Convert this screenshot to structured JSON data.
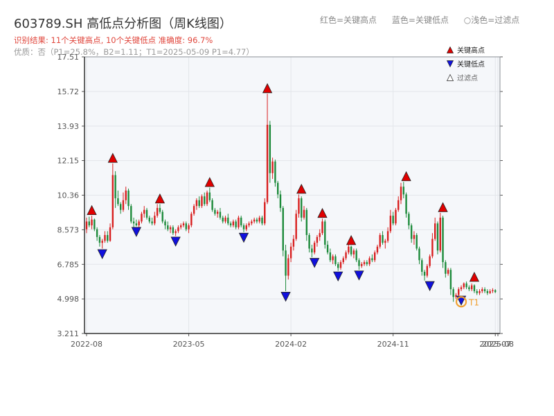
{
  "header": {
    "title": "603789.SH 高低点分析图（周K线图）",
    "subtitle": "识别结果: 11个关键高点, 10个关键低点   准确度: 96.7%",
    "note": "优质：否（P1=25.8%，B2=1.11；T1=2025-05-09 P1=4.77）",
    "legend_top": [
      "红色=关键高点",
      "蓝色=关键低点",
      "○浅色=过滤点"
    ]
  },
  "chart_data": {
    "type": "candlestick",
    "y_ticks": [
      "3.211",
      "4.998",
      "6.785",
      "8.573",
      "10.36",
      "12.15",
      "13.93",
      "15.72",
      "17.51"
    ],
    "ylim": [
      3.211,
      17.51
    ],
    "x_ticks": [
      {
        "i": 0,
        "label": "2022-08"
      },
      {
        "i": 39,
        "label": "2023-05"
      },
      {
        "i": 78,
        "label": "2024-02"
      },
      {
        "i": 117,
        "label": "2024-11"
      },
      {
        "i": 156,
        "label": "2025-07"
      },
      {
        "i": 157,
        "label": "2025-08"
      }
    ],
    "x_range": [
      0,
      157
    ],
    "legend": {
      "position": "top-right",
      "items": [
        {
          "label": "关键高点",
          "color": "#e00000",
          "marker": "up"
        },
        {
          "label": "关键低点",
          "color": "#1010dd",
          "marker": "down"
        },
        {
          "label": "过滤点",
          "color": "#ffffff",
          "marker": "up-hollow"
        }
      ]
    },
    "key_highs": [
      {
        "i": 2,
        "price": 9.3
      },
      {
        "i": 10,
        "price": 12.0
      },
      {
        "i": 28,
        "price": 9.9
      },
      {
        "i": 47,
        "price": 10.75
      },
      {
        "i": 69,
        "price": 15.6
      },
      {
        "i": 82,
        "price": 10.4
      },
      {
        "i": 90,
        "price": 9.15
      },
      {
        "i": 101,
        "price": 7.75
      },
      {
        "i": 122,
        "price": 11.05
      },
      {
        "i": 136,
        "price": 9.45
      },
      {
        "i": 148,
        "price": 5.85
      }
    ],
    "key_lows": [
      {
        "i": 6,
        "price": 7.6
      },
      {
        "i": 19,
        "price": 8.75
      },
      {
        "i": 34,
        "price": 8.25
      },
      {
        "i": 60,
        "price": 8.45
      },
      {
        "i": 76,
        "price": 5.4
      },
      {
        "i": 87,
        "price": 7.15
      },
      {
        "i": 96,
        "price": 6.45
      },
      {
        "i": 104,
        "price": 6.5
      },
      {
        "i": 131,
        "price": 5.95
      },
      {
        "i": 143,
        "price": 5.2
      }
    ],
    "filtered_points": [
      {
        "i": 143,
        "price": 4.85,
        "label": "T1"
      }
    ],
    "candles": [
      [
        8.6,
        9.2,
        8.4,
        9.0
      ],
      [
        9.0,
        9.25,
        8.7,
        8.8
      ],
      [
        8.8,
        9.3,
        8.6,
        9.1
      ],
      [
        9.1,
        9.15,
        8.5,
        8.6
      ],
      [
        8.6,
        8.7,
        8.0,
        8.2
      ],
      [
        8.2,
        8.3,
        7.7,
        7.9
      ],
      [
        7.9,
        8.1,
        7.6,
        8.0
      ],
      [
        8.0,
        8.5,
        7.9,
        8.3
      ],
      [
        8.3,
        8.5,
        7.9,
        8.0
      ],
      [
        8.0,
        8.9,
        7.95,
        8.7
      ],
      [
        8.7,
        12.0,
        8.6,
        11.4
      ],
      [
        11.4,
        11.6,
        9.7,
        10.2
      ],
      [
        10.2,
        10.6,
        9.8,
        9.9
      ],
      [
        9.9,
        10.0,
        9.4,
        9.6
      ],
      [
        9.6,
        10.5,
        9.5,
        10.1
      ],
      [
        10.1,
        10.8,
        9.9,
        10.6
      ],
      [
        10.6,
        10.7,
        9.6,
        9.8
      ],
      [
        9.8,
        9.9,
        8.9,
        9.0
      ],
      [
        9.0,
        9.2,
        8.7,
        8.9
      ],
      [
        8.9,
        9.1,
        8.75,
        8.8
      ],
      [
        8.8,
        9.1,
        8.7,
        9.0
      ],
      [
        9.0,
        9.5,
        8.9,
        9.4
      ],
      [
        9.4,
        9.8,
        9.2,
        9.6
      ],
      [
        9.6,
        9.7,
        9.1,
        9.2
      ],
      [
        9.2,
        9.3,
        8.9,
        9.0
      ],
      [
        9.0,
        9.2,
        8.8,
        8.9
      ],
      [
        8.9,
        9.5,
        8.8,
        9.3
      ],
      [
        9.3,
        9.9,
        9.2,
        9.7
      ],
      [
        9.7,
        9.9,
        9.4,
        9.5
      ],
      [
        9.5,
        9.6,
        8.9,
        9.0
      ],
      [
        9.0,
        9.1,
        8.6,
        8.8
      ],
      [
        8.8,
        9.0,
        8.5,
        8.6
      ],
      [
        8.6,
        8.8,
        8.4,
        8.7
      ],
      [
        8.7,
        8.8,
        8.3,
        8.4
      ],
      [
        8.4,
        8.6,
        8.25,
        8.5
      ],
      [
        8.5,
        8.8,
        8.4,
        8.7
      ],
      [
        8.7,
        8.9,
        8.6,
        8.8
      ],
      [
        8.8,
        9.0,
        8.7,
        8.9
      ],
      [
        8.9,
        9.0,
        8.5,
        8.6
      ],
      [
        8.6,
        8.9,
        8.4,
        8.8
      ],
      [
        8.8,
        9.5,
        8.7,
        9.4
      ],
      [
        9.4,
        9.9,
        9.3,
        9.8
      ],
      [
        9.8,
        10.2,
        9.6,
        10.1
      ],
      [
        10.1,
        10.3,
        9.7,
        9.8
      ],
      [
        9.8,
        10.4,
        9.7,
        10.3
      ],
      [
        10.3,
        10.5,
        9.8,
        9.9
      ],
      [
        9.9,
        10.6,
        9.8,
        10.5
      ],
      [
        10.5,
        10.75,
        10.0,
        10.1
      ],
      [
        10.1,
        10.2,
        9.5,
        9.6
      ],
      [
        9.6,
        9.7,
        9.3,
        9.4
      ],
      [
        9.4,
        9.6,
        9.2,
        9.5
      ],
      [
        9.5,
        9.7,
        9.1,
        9.2
      ],
      [
        9.2,
        9.3,
        8.9,
        9.0
      ],
      [
        9.0,
        9.3,
        8.9,
        9.2
      ],
      [
        9.2,
        9.4,
        8.8,
        8.9
      ],
      [
        8.9,
        9.0,
        8.7,
        8.8
      ],
      [
        8.8,
        9.1,
        8.7,
        9.0
      ],
      [
        9.0,
        9.1,
        8.6,
        8.7
      ],
      [
        8.7,
        9.3,
        8.6,
        9.2
      ],
      [
        9.2,
        9.3,
        8.7,
        8.8
      ],
      [
        8.8,
        8.9,
        8.45,
        8.6
      ],
      [
        8.6,
        8.9,
        8.5,
        8.8
      ],
      [
        8.8,
        9.0,
        8.7,
        8.9
      ],
      [
        8.9,
        9.1,
        8.8,
        9.0
      ],
      [
        9.0,
        9.2,
        8.9,
        9.1
      ],
      [
        9.1,
        9.2,
        8.9,
        9.0
      ],
      [
        9.0,
        9.3,
        8.9,
        9.2
      ],
      [
        9.2,
        9.3,
        8.8,
        8.9
      ],
      [
        8.9,
        10.2,
        8.8,
        10.0
      ],
      [
        10.0,
        15.6,
        9.9,
        14.0
      ],
      [
        14.0,
        14.2,
        11.0,
        11.5
      ],
      [
        11.5,
        12.3,
        11.2,
        12.1
      ],
      [
        12.1,
        12.2,
        10.8,
        11.0
      ],
      [
        11.0,
        11.1,
        10.2,
        10.4
      ],
      [
        10.4,
        10.6,
        9.5,
        9.7
      ],
      [
        9.7,
        9.8,
        7.2,
        7.5
      ],
      [
        7.5,
        7.8,
        5.4,
        6.2
      ],
      [
        6.2,
        7.3,
        6.0,
        7.1
      ],
      [
        7.1,
        7.9,
        6.9,
        7.7
      ],
      [
        7.7,
        8.3,
        7.5,
        8.1
      ],
      [
        8.1,
        9.6,
        8.0,
        9.4
      ],
      [
        9.4,
        10.4,
        9.2,
        10.2
      ],
      [
        10.2,
        10.3,
        9.0,
        9.2
      ],
      [
        9.2,
        9.8,
        9.1,
        9.6
      ],
      [
        9.6,
        9.7,
        8.0,
        8.3
      ],
      [
        8.3,
        8.4,
        7.4,
        7.6
      ],
      [
        7.6,
        7.8,
        7.15,
        7.4
      ],
      [
        7.4,
        8.0,
        7.3,
        7.9
      ],
      [
        7.9,
        8.3,
        7.7,
        8.2
      ],
      [
        8.2,
        8.6,
        8.0,
        8.4
      ],
      [
        8.4,
        9.15,
        8.3,
        9.0
      ],
      [
        9.0,
        9.1,
        7.6,
        7.8
      ],
      [
        7.8,
        8.0,
        7.3,
        7.4
      ],
      [
        7.4,
        7.6,
        6.9,
        7.0
      ],
      [
        7.0,
        7.3,
        6.8,
        7.2
      ],
      [
        7.2,
        7.3,
        6.7,
        6.8
      ],
      [
        6.8,
        6.9,
        6.45,
        6.6
      ],
      [
        6.6,
        7.0,
        6.5,
        6.9
      ],
      [
        6.9,
        7.2,
        6.8,
        7.1
      ],
      [
        7.1,
        7.5,
        7.0,
        7.4
      ],
      [
        7.4,
        7.8,
        7.3,
        7.7
      ],
      [
        7.7,
        7.75,
        7.2,
        7.3
      ],
      [
        7.3,
        7.6,
        7.1,
        7.5
      ],
      [
        7.5,
        7.6,
        6.9,
        7.0
      ],
      [
        7.0,
        7.1,
        6.5,
        6.7
      ],
      [
        6.7,
        6.9,
        6.6,
        6.8
      ],
      [
        6.8,
        7.0,
        6.7,
        6.9
      ],
      [
        6.9,
        7.0,
        6.7,
        6.8
      ],
      [
        6.8,
        7.2,
        6.7,
        7.1
      ],
      [
        7.1,
        7.3,
        6.9,
        7.0
      ],
      [
        7.0,
        7.5,
        6.9,
        7.4
      ],
      [
        7.4,
        7.8,
        7.3,
        7.7
      ],
      [
        7.7,
        8.4,
        7.6,
        8.3
      ],
      [
        8.3,
        8.5,
        7.8,
        7.9
      ],
      [
        7.9,
        8.1,
        7.6,
        8.0
      ],
      [
        8.0,
        8.7,
        7.9,
        8.5
      ],
      [
        8.5,
        9.6,
        8.4,
        9.3
      ],
      [
        9.3,
        9.5,
        8.8,
        8.9
      ],
      [
        8.9,
        9.7,
        8.8,
        9.6
      ],
      [
        9.6,
        10.3,
        9.5,
        10.1
      ],
      [
        10.1,
        11.0,
        9.9,
        10.8
      ],
      [
        10.8,
        11.05,
        10.2,
        10.4
      ],
      [
        10.4,
        10.5,
        9.2,
        9.4
      ],
      [
        9.4,
        9.5,
        8.6,
        8.8
      ],
      [
        8.8,
        8.9,
        7.9,
        8.1
      ],
      [
        8.1,
        8.5,
        7.8,
        8.3
      ],
      [
        8.3,
        8.4,
        7.5,
        7.6
      ],
      [
        7.6,
        7.7,
        6.8,
        7.0
      ],
      [
        7.0,
        7.1,
        6.2,
        6.4
      ],
      [
        6.4,
        6.5,
        5.95,
        6.2
      ],
      [
        6.2,
        6.8,
        6.1,
        6.7
      ],
      [
        6.7,
        7.3,
        6.6,
        7.2
      ],
      [
        7.2,
        8.4,
        7.1,
        8.1
      ],
      [
        8.1,
        9.2,
        8.0,
        8.9
      ],
      [
        8.9,
        9.0,
        7.3,
        7.5
      ],
      [
        7.5,
        9.45,
        7.4,
        9.2
      ],
      [
        9.2,
        9.3,
        6.6,
        6.9
      ],
      [
        6.9,
        7.0,
        6.1,
        6.3
      ],
      [
        6.3,
        6.6,
        6.2,
        6.5
      ],
      [
        6.5,
        6.6,
        5.2,
        5.5
      ],
      [
        5.5,
        5.6,
        4.85,
        5.1
      ],
      [
        5.1,
        5.3,
        5.0,
        5.2
      ],
      [
        5.2,
        5.6,
        5.1,
        5.5
      ],
      [
        5.5,
        5.7,
        5.4,
        5.6
      ],
      [
        5.6,
        5.85,
        5.5,
        5.8
      ],
      [
        5.8,
        5.9,
        5.5,
        5.6
      ],
      [
        5.6,
        5.7,
        5.4,
        5.5
      ],
      [
        5.5,
        5.8,
        5.4,
        5.7
      ],
      [
        5.7,
        5.75,
        5.3,
        5.4
      ],
      [
        5.4,
        5.5,
        5.2,
        5.3
      ],
      [
        5.3,
        5.5,
        5.2,
        5.4
      ],
      [
        5.4,
        5.6,
        5.3,
        5.5
      ],
      [
        5.5,
        5.6,
        5.3,
        5.4
      ],
      [
        5.4,
        5.5,
        5.2,
        5.3
      ],
      [
        5.3,
        5.5,
        5.25,
        5.4
      ],
      [
        5.4,
        5.55,
        5.3,
        5.45
      ],
      [
        5.45,
        5.5,
        5.3,
        5.35
      ]
    ],
    "colors": {
      "up": "#d81e1e",
      "down": "#1c8a3a",
      "high_marker": "#e00000",
      "low_marker": "#1010dd",
      "filtered_ring": "#f0a030",
      "plot_bg": "#f5f7fa",
      "grid": "#e3e6ea",
      "axis": "#555555"
    }
  }
}
